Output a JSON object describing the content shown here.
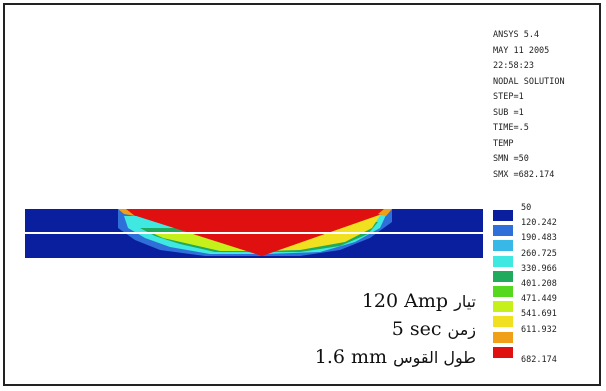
{
  "header": {
    "software": "ANSYS 5.4",
    "date": "MAY 11 2005",
    "time": "22:58:23",
    "solution_type": "NODAL SOLUTION",
    "step": "STEP=1",
    "sub": "SUB =1",
    "time_value": "TIME=.5",
    "variable": "TEMP",
    "smn": "SMN =50",
    "smx": "SMX =682.174"
  },
  "legend": {
    "levels": [
      {
        "value": "50",
        "color": "#0a1f9e"
      },
      {
        "value": "120.242",
        "color": "#2f6fd9"
      },
      {
        "value": "190.483",
        "color": "#38b8e6"
      },
      {
        "value": "260.725",
        "color": "#3fe8e0"
      },
      {
        "value": "330.966",
        "color": "#1faa5c"
      },
      {
        "value": "401.208",
        "color": "#55d81f"
      },
      {
        "value": "471.449",
        "color": "#c6f01a"
      },
      {
        "value": "541.691",
        "color": "#f0e020"
      },
      {
        "value": "611.932",
        "color": "#f0a018"
      },
      {
        "value": "",
        "color": "#e01010"
      }
    ],
    "max_label": "682.174"
  },
  "captions": {
    "current_value": "120 Amp",
    "current_label": "تيار",
    "time_value": "5 sec",
    "time_label": "زمن",
    "arc_value": "1.6 mm",
    "arc_label": "طول القوس"
  },
  "colors": {
    "cold": "#0a1f9e",
    "molten": "#e01010",
    "separator": "#ffffff"
  }
}
